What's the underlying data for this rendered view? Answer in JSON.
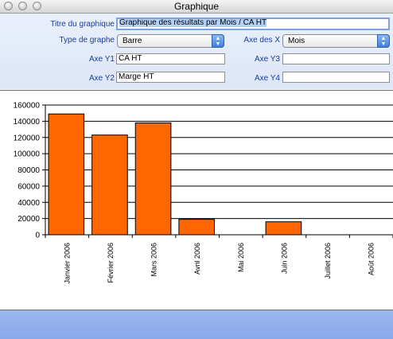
{
  "window": {
    "title": "Graphique"
  },
  "form": {
    "title_label": "Titre du graphique",
    "title_value": "Graphique des résultats par Mois / CA HT",
    "type_label": "Type de graphe",
    "type_value": "Barre",
    "x_axis_label": "Axe des X",
    "x_axis_value": "Mois",
    "y1_label": "Axe Y1",
    "y1_value": "CA HT",
    "y2_label": "Axe Y2",
    "y2_value": "Marge HT",
    "y3_label": "Axe Y3",
    "y3_value": "",
    "y4_label": "Axe Y4",
    "y4_value": ""
  },
  "chart_data": {
    "type": "bar",
    "categories": [
      "Janvier 2006",
      "Février 2006",
      "Mars 2006",
      "Avril 2006",
      "Mai 2006",
      "Juin 2006",
      "Juillet 2006",
      "Août 2006"
    ],
    "values": [
      149000,
      123000,
      138000,
      19000,
      0,
      16000,
      0,
      0
    ],
    "y_ticks": [
      "0",
      "20000",
      "40000",
      "60000",
      "80000",
      "100000",
      "120000",
      "140000",
      "160000"
    ],
    "ylim": [
      0,
      160000
    ],
    "grid": true,
    "bar_color": "#ff6600"
  }
}
